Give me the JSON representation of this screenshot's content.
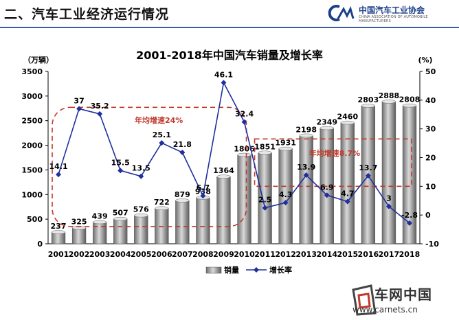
{
  "header": {
    "section_title": "二、汽车工业经济运行情况",
    "logo_text": "中国汽车工业协会",
    "logo_subtext": "CHINA ASSOCIATION OF AUTOMOBILE MANUFACTURERS"
  },
  "watermark": {
    "brand": "车网中国",
    "url": "www.carnets.cn",
    "overlay_text": "度信息服务"
  },
  "colors": {
    "bar": "#9a9a9a",
    "line": "#1f2f9c",
    "highlight_box": "#c0392b",
    "header_rule": "#3a5fa0"
  },
  "chart_data": {
    "type": "bar+line",
    "title": "2001-2018年中国汽车销量及增长率",
    "y_left_unit": "（万辆）",
    "y_right_unit": "(%)",
    "y_left_range": [
      0,
      3500
    ],
    "y_left_ticks": [
      0,
      500,
      1000,
      1500,
      2000,
      2500,
      3000,
      3500
    ],
    "y_right_range": [
      -10,
      50
    ],
    "y_right_ticks": [
      -10,
      0,
      10,
      20,
      30,
      40,
      50
    ],
    "categories": [
      "2001",
      "2002",
      "2003",
      "2004",
      "2005",
      "2006",
      "2007",
      "2008",
      "2009",
      "2010",
      "2011",
      "2012",
      "2013",
      "2014",
      "2015",
      "2016",
      "2017",
      "2018"
    ],
    "series": [
      {
        "name": "销量",
        "kind": "bar",
        "axis": "left",
        "values": [
          237,
          325,
          439,
          507,
          576,
          722,
          879,
          938,
          1364,
          1806,
          1851,
          1931,
          2198,
          2349,
          2460,
          2803,
          2888,
          2808
        ],
        "labels": [
          "237",
          "325",
          "439",
          "507",
          "576",
          "722",
          "879",
          "938",
          "1364",
          "1806",
          "1851",
          "1931",
          "2198",
          "2349",
          "2460",
          "2803",
          "2888",
          "2808"
        ]
      },
      {
        "name": "增长率",
        "kind": "line",
        "axis": "right",
        "values": [
          14.1,
          37,
          35.2,
          15.5,
          13.5,
          25.1,
          21.8,
          6.7,
          46.1,
          32.4,
          2.5,
          4.3,
          13.9,
          6.9,
          4.7,
          13.7,
          3,
          -2.8
        ],
        "labels": [
          "14.1",
          "37",
          "35.2",
          "15.5",
          "13.5",
          "25.1",
          "21.8",
          "6.7",
          "46.1",
          "32.4",
          "2.5",
          "4.3",
          "13.9",
          "6.9",
          "4.7",
          "13.7",
          "3",
          "-2.8"
        ]
      }
    ],
    "annotations": [
      {
        "text": "年均增速24%",
        "from": "2001",
        "to": "2010"
      },
      {
        "text": "年均增速8.7%",
        "from": "2011",
        "to": "2018"
      }
    ],
    "legend": [
      "销量",
      "增长率"
    ],
    "legend_position": "bottom"
  }
}
